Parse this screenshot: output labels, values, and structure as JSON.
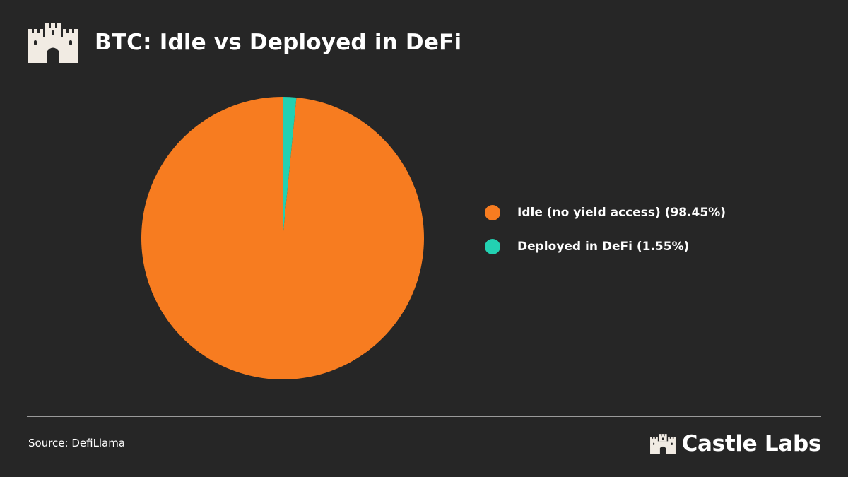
{
  "header": {
    "title": "BTC: Idle vs Deployed in DeFi",
    "logo_icon": "castle-icon"
  },
  "colors": {
    "background": "#262626",
    "idle": "#f77c20",
    "deployed": "#23d1b2",
    "text": "#ffffff",
    "logo": "#f1ebe3"
  },
  "chart_data": {
    "type": "pie",
    "title": "BTC: Idle vs Deployed in DeFi",
    "slices": [
      {
        "label": "Idle (no yield access) (98.45%)",
        "value": 98.45,
        "color": "#f77c20"
      },
      {
        "label": "Deployed in DeFi (1.55%)",
        "value": 1.55,
        "color": "#23d1b2"
      }
    ],
    "legend_position": "right"
  },
  "footer": {
    "source": "Source: DefiLlama",
    "brand_name": "Castle Labs",
    "brand_icon": "castle-icon"
  }
}
